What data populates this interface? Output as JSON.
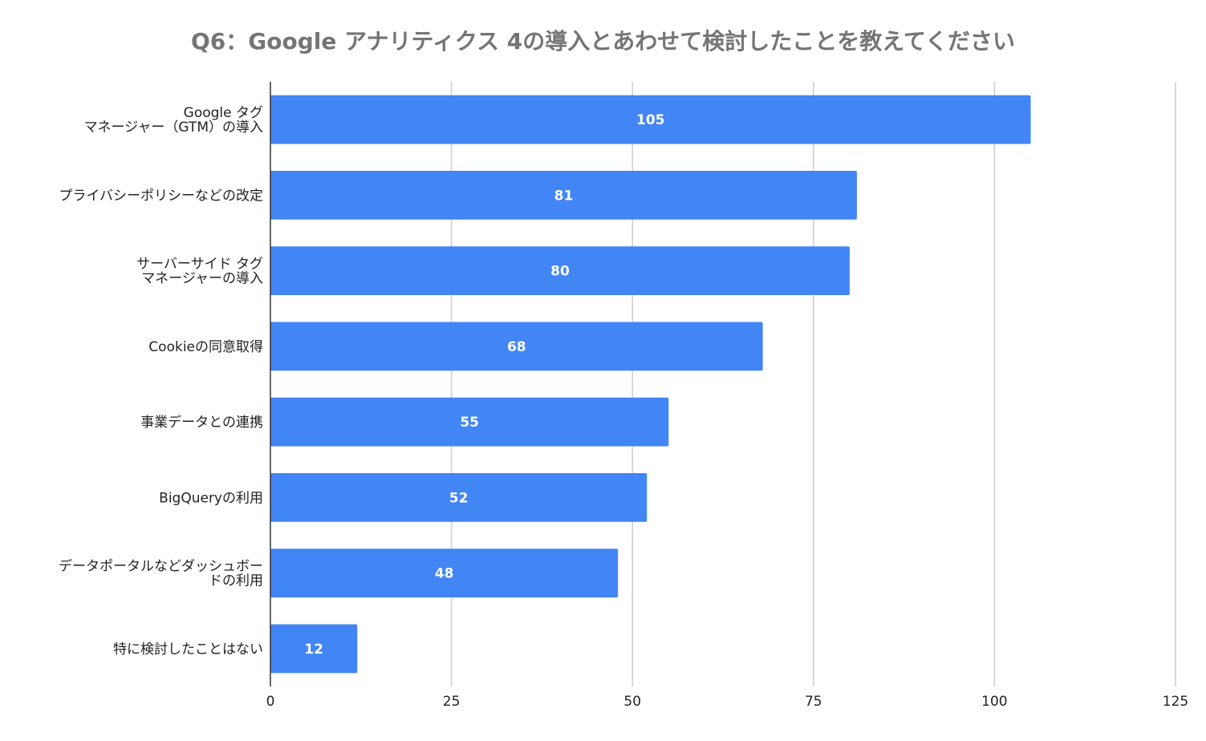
{
  "chart_data": {
    "type": "bar",
    "orientation": "horizontal",
    "title": "Q6：Google アナリティクス 4の導入とあわせて検討したことを教えてください",
    "categories": [
      [
        "Google タグ",
        "マネージャー（GTM）の導入"
      ],
      [
        "プライバシーポリシーなどの改定"
      ],
      [
        "サーバーサイド タグ",
        "マネージャーの導入"
      ],
      [
        "Cookieの同意取得"
      ],
      [
        "事業データとの連携"
      ],
      [
        "BigQueryの利用"
      ],
      [
        "データポータルなどダッシュボー",
        "ドの利用"
      ],
      [
        "特に検討したことはない"
      ]
    ],
    "values": [
      105,
      81,
      80,
      68,
      55,
      52,
      48,
      12
    ],
    "xlim": [
      0,
      125
    ],
    "xticks": [
      0,
      25,
      50,
      75,
      100,
      125
    ],
    "grid": true,
    "legend": "none",
    "bar_color": "#4285f4",
    "gridline_color": "#cccccc",
    "axis_color": "#333333"
  }
}
